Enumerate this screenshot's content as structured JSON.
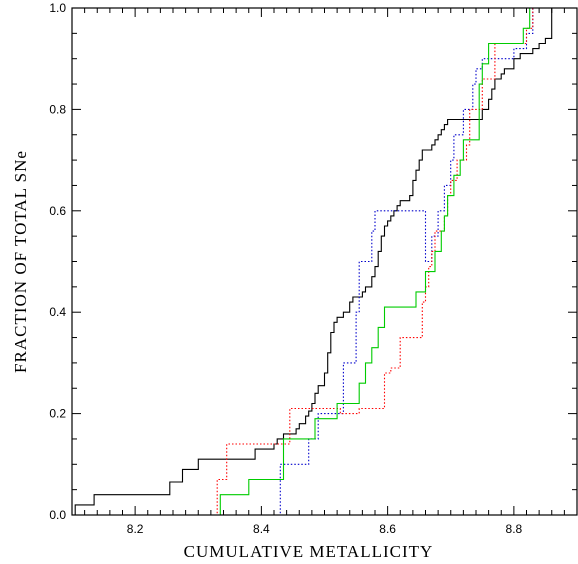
{
  "chart_data": {
    "type": "line",
    "step": true,
    "xlabel": "CUMULATIVE METALLICITY",
    "ylabel": "FRACTION OF TOTAL SNe",
    "xlim": [
      8.1,
      8.9
    ],
    "ylim": [
      0.0,
      1.0
    ],
    "xticks": [
      8.2,
      8.4,
      8.6,
      8.8
    ],
    "xtick_labels": [
      "8.2",
      "8.4",
      "8.6",
      "8.8"
    ],
    "yticks": [
      0.0,
      0.2,
      0.4,
      0.6,
      0.8,
      1.0
    ],
    "ytick_labels": [
      "0.0",
      "0.2",
      "0.4",
      "0.6",
      "0.8",
      "1.0"
    ],
    "grid": false,
    "series": [
      {
        "color": "#000000",
        "dash": "solid",
        "x": [
          8.1,
          8.105,
          8.135,
          8.255,
          8.275,
          8.3,
          8.39,
          8.42,
          8.425,
          8.435,
          8.455,
          8.46,
          8.47,
          8.475,
          8.48,
          8.485,
          8.49,
          8.5,
          8.505,
          8.51,
          8.515,
          8.52,
          8.53,
          8.54,
          8.545,
          8.56,
          8.565,
          8.575,
          8.58,
          8.585,
          8.59,
          8.595,
          8.6,
          8.605,
          8.61,
          8.615,
          8.62,
          8.635,
          8.64,
          8.645,
          8.65,
          8.655,
          8.66,
          8.67,
          8.675,
          8.68,
          8.685,
          8.69,
          8.695,
          8.72,
          8.735,
          8.75,
          8.76,
          8.765,
          8.77,
          8.78,
          8.785,
          8.8,
          8.81,
          8.83,
          8.84,
          8.85,
          8.86
        ],
        "y": [
          0.0,
          0.02,
          0.04,
          0.065,
          0.09,
          0.11,
          0.13,
          0.14,
          0.15,
          0.16,
          0.17,
          0.18,
          0.195,
          0.205,
          0.22,
          0.24,
          0.255,
          0.28,
          0.32,
          0.36,
          0.38,
          0.39,
          0.4,
          0.42,
          0.43,
          0.44,
          0.45,
          0.47,
          0.49,
          0.52,
          0.55,
          0.57,
          0.58,
          0.59,
          0.6,
          0.61,
          0.62,
          0.63,
          0.66,
          0.68,
          0.7,
          0.72,
          0.72,
          0.73,
          0.74,
          0.75,
          0.76,
          0.77,
          0.78,
          0.78,
          0.78,
          0.8,
          0.82,
          0.84,
          0.86,
          0.87,
          0.88,
          0.9,
          0.91,
          0.92,
          0.93,
          0.94,
          1.0
        ]
      },
      {
        "color": "#0000cc",
        "dash": "dotted",
        "x": [
          8.1,
          8.43,
          8.435,
          8.475,
          8.49,
          8.5,
          8.53,
          8.535,
          8.55,
          8.555,
          8.575,
          8.58,
          8.63,
          8.66,
          8.665,
          8.67,
          8.68,
          8.685,
          8.69,
          8.7,
          8.705,
          8.72,
          8.735,
          8.74,
          8.75,
          8.77,
          8.8,
          8.82,
          8.83
        ],
        "y": [
          0.0,
          0.1,
          0.1,
          0.15,
          0.2,
          0.2,
          0.3,
          0.3,
          0.4,
          0.5,
          0.56,
          0.6,
          0.6,
          0.5,
          0.5,
          0.55,
          0.6,
          0.6,
          0.65,
          0.7,
          0.75,
          0.8,
          0.85,
          0.88,
          0.9,
          0.9,
          0.92,
          0.95,
          1.0
        ]
      },
      {
        "color": "#ff0000",
        "dash": "dotted",
        "x": [
          8.1,
          8.33,
          8.345,
          8.44,
          8.445,
          8.48,
          8.5,
          8.51,
          8.525,
          8.555,
          8.59,
          8.595,
          8.605,
          8.62,
          8.635,
          8.65,
          8.655,
          8.66,
          8.665,
          8.67,
          8.675,
          8.69,
          8.695,
          8.7,
          8.71,
          8.725,
          8.73,
          8.75,
          8.77,
          8.8,
          8.82,
          8.83
        ],
        "y": [
          0.0,
          0.07,
          0.14,
          0.14,
          0.21,
          0.21,
          0.21,
          0.21,
          0.2,
          0.21,
          0.21,
          0.28,
          0.29,
          0.35,
          0.35,
          0.35,
          0.42,
          0.45,
          0.49,
          0.52,
          0.56,
          0.59,
          0.63,
          0.66,
          0.7,
          0.73,
          0.8,
          0.86,
          0.93,
          0.93,
          0.96,
          1.0
        ]
      },
      {
        "color": "#00cc00",
        "dash": "solid",
        "x": [
          8.1,
          8.335,
          8.38,
          8.435,
          8.485,
          8.52,
          8.555,
          8.565,
          8.575,
          8.585,
          8.595,
          8.605,
          8.645,
          8.66,
          8.665,
          8.675,
          8.685,
          8.69,
          8.695,
          8.705,
          8.715,
          8.72,
          8.745,
          8.75,
          8.76,
          8.815,
          8.825
        ],
        "y": [
          0.0,
          0.04,
          0.07,
          0.15,
          0.19,
          0.22,
          0.26,
          0.3,
          0.33,
          0.37,
          0.41,
          0.41,
          0.44,
          0.48,
          0.48,
          0.52,
          0.56,
          0.59,
          0.63,
          0.67,
          0.7,
          0.74,
          0.85,
          0.89,
          0.93,
          0.96,
          1.0
        ]
      }
    ]
  }
}
